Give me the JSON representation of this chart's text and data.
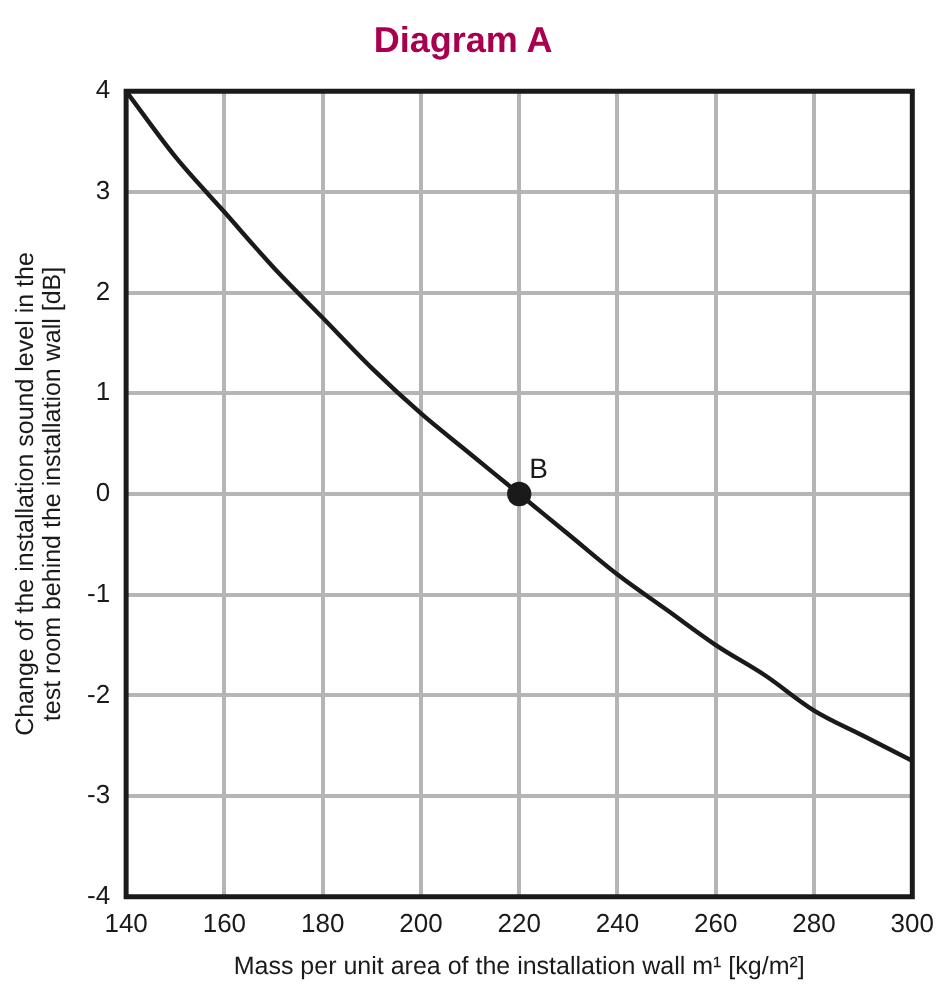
{
  "chart_data": {
    "type": "line",
    "title": "Diagram A",
    "xlabel": "Mass per unit area of the installation wall m¹ [kg/m²]",
    "ylabel": "Change of the installation sound level in the\ntest room behind the installation wall [dB]",
    "series": [
      {
        "color": "#1a1a1a",
        "x": [
          140,
          150,
          160,
          170,
          180,
          190,
          200,
          210,
          220,
          230,
          240,
          250,
          260,
          270,
          280,
          290,
          300
        ],
        "values": [
          4,
          3.35,
          2.8,
          2.25,
          1.75,
          1.25,
          0.8,
          0.4,
          0,
          -0.4,
          -0.8,
          -1.15,
          -1.5,
          -1.8,
          -2.15,
          -2.4,
          -2.65
        ]
      },
      {
        "type": "scatter",
        "color": "#1a1a1a",
        "marker": "circle",
        "x": [
          220
        ],
        "values": [
          0
        ]
      }
    ],
    "annotations": [
      {
        "text": "B",
        "x": 220,
        "y": 0
      }
    ],
    "xlim": [
      140,
      300
    ],
    "xticks": [
      140,
      160,
      180,
      200,
      220,
      240,
      260,
      280,
      300
    ],
    "ylim": [
      -4,
      4
    ],
    "yticks": [
      -4,
      -3,
      -2,
      -1,
      0,
      1,
      2,
      3,
      4
    ],
    "grid": true,
    "marker": "none",
    "line_style": "solid",
    "legend": false
  }
}
